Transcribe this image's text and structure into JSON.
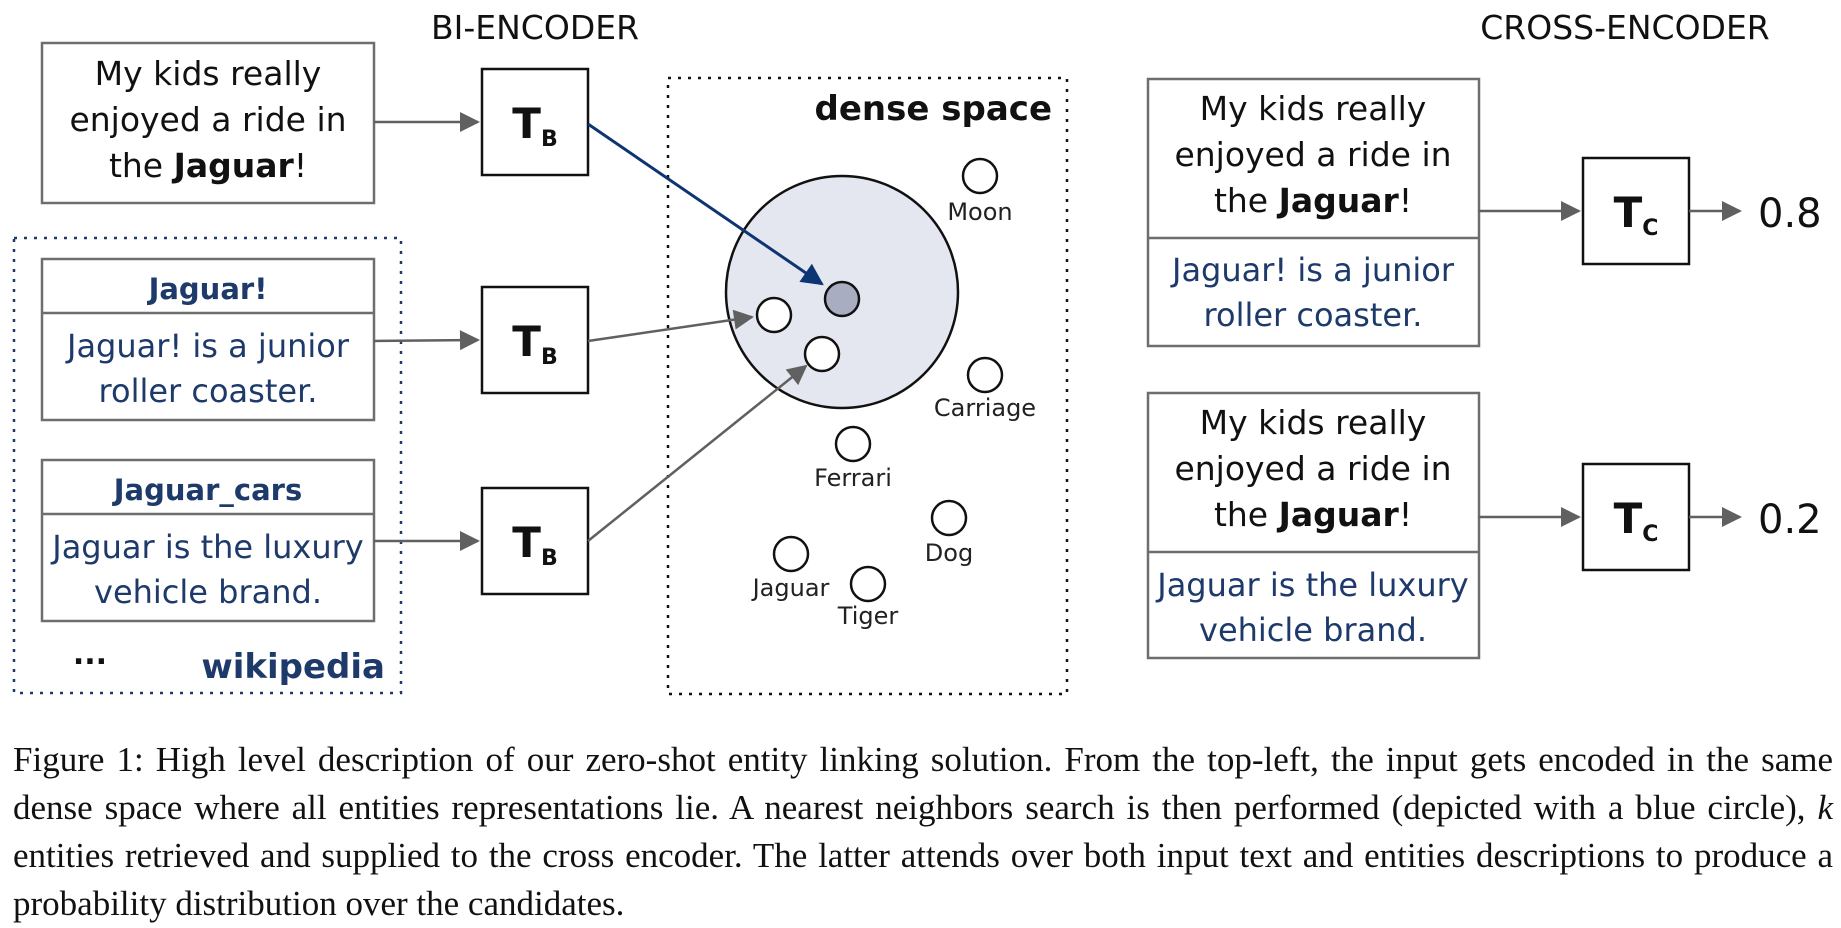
{
  "figure": {
    "bi_encoder_title": "BI-ENCODER",
    "cross_encoder_title": "CROSS-ENCODER",
    "dense_space_label": "dense space",
    "wikipedia_label": "wikipedia",
    "ellipsis": "...",
    "input": {
      "line1": "My kids really",
      "line2": "enjoyed a ride in",
      "line3_prefix": "the ",
      "line3_bold": "Jaguar",
      "line3_suffix": "!"
    },
    "entity1": {
      "title": "Jaguar!",
      "desc_line1": "Jaguar! is a junior",
      "desc_line2": "roller coaster."
    },
    "entity2": {
      "title": "Jaguar_cars",
      "desc_line1": "Jaguar is the luxury",
      "desc_line2": "vehicle brand."
    },
    "encoder_b": {
      "main": "T",
      "sub": "B"
    },
    "encoder_c": {
      "main": "T",
      "sub": "C"
    },
    "points": [
      {
        "label": "Moon"
      },
      {
        "label": "Carriage"
      },
      {
        "label": "Ferrari"
      },
      {
        "label": "Dog"
      },
      {
        "label": "Jaguar"
      },
      {
        "label": "Tiger"
      }
    ],
    "scores": [
      "0.8",
      "0.2"
    ]
  },
  "caption": {
    "lead": "Figure 1: High level description of our zero-shot entity linking solution. From the top-left, the input gets encoded in the same dense space where all entities representations lie. A nearest neighbors search is then performed (depicted with a blue circle), ",
    "k": "k",
    "tail": " entities retrieved and supplied to the cross encoder. The latter attends over both input text and entities descriptions to produce a probability distribution over the candidates."
  },
  "colors": {
    "entity_blue": "#1d3a6b",
    "arrow_blue": "#0d3573",
    "circle_fill": "#e4e7ef",
    "query_point": "#a9adc2",
    "arrow_gray": "#606060",
    "box_border": "#6e6e6e"
  }
}
